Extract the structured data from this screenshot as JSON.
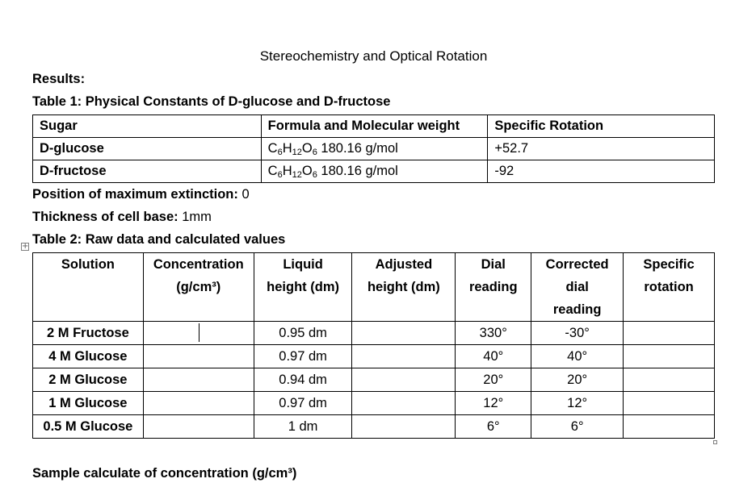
{
  "document": {
    "title": "Stereochemistry and Optical Rotation",
    "results_label": "Results:",
    "table1_caption": "Table 1: Physical Constants of D-glucose and D-fructose",
    "table1": {
      "headers": [
        "Sugar",
        "Formula and Molecular weight",
        "Specific Rotation"
      ],
      "rows": [
        {
          "sugar": "D-glucose",
          "formula": {
            "c": "C",
            "c_sub": "6",
            "h": "H",
            "h_sub": "12",
            "o": "O",
            "o_sub": "6",
            "mw": " 180.16 g/mol"
          },
          "rotation": "+52.7"
        },
        {
          "sugar": "D-fructose",
          "formula": {
            "c": "C",
            "c_sub": "6",
            "h": "H",
            "h_sub": "12",
            "o": "O",
            "o_sub": "6",
            "mw": " 180.16 g/mol"
          },
          "rotation": "-92"
        }
      ]
    },
    "max_extinction": {
      "label": "Position of maximum extinction:",
      "value": " 0"
    },
    "cell_thickness": {
      "label": "Thickness of cell base:",
      "value": " 1mm"
    },
    "table2_caption": "Table 2: Raw data and calculated values",
    "table2": {
      "headers": [
        {
          "line1": "Solution",
          "line2": "",
          "line3": ""
        },
        {
          "line1": "Concentration",
          "line2": "(g/cm³)",
          "line3": ""
        },
        {
          "line1": "Liquid",
          "line2": "height (dm)",
          "line3": ""
        },
        {
          "line1": "Adjusted",
          "line2": "height (dm)",
          "line3": ""
        },
        {
          "line1": "Dial",
          "line2": "reading",
          "line3": ""
        },
        {
          "line1": "Corrected",
          "line2": "dial",
          "line3": "reading"
        },
        {
          "line1": "Specific",
          "line2": "rotation",
          "line3": ""
        }
      ],
      "rows": [
        {
          "solution": "2 M Fructose",
          "concentration": "",
          "liquid_height": "0.95 dm",
          "adjusted_height": "",
          "dial": "330°",
          "corrected": "-30°",
          "specific": ""
        },
        {
          "solution": "4 M Glucose",
          "concentration": "",
          "liquid_height": "0.97 dm",
          "adjusted_height": "",
          "dial": "40°",
          "corrected": "40°",
          "specific": ""
        },
        {
          "solution": "2 M Glucose",
          "concentration": "",
          "liquid_height": "0.94 dm",
          "adjusted_height": "",
          "dial": "20°",
          "corrected": "20°",
          "specific": ""
        },
        {
          "solution": "1 M Glucose",
          "concentration": "",
          "liquid_height": "0.97 dm",
          "adjusted_height": "",
          "dial": "12°",
          "corrected": "12°",
          "specific": ""
        },
        {
          "solution": "0.5 M Glucose",
          "concentration": "",
          "liquid_height": "1 dm",
          "adjusted_height": "",
          "dial": "6°",
          "corrected": "6°",
          "specific": ""
        }
      ]
    },
    "sample_calc_label": "Sample calculate of concentration (g/cm³)",
    "icons": {
      "table_move_handle": "move-cross-icon"
    }
  }
}
